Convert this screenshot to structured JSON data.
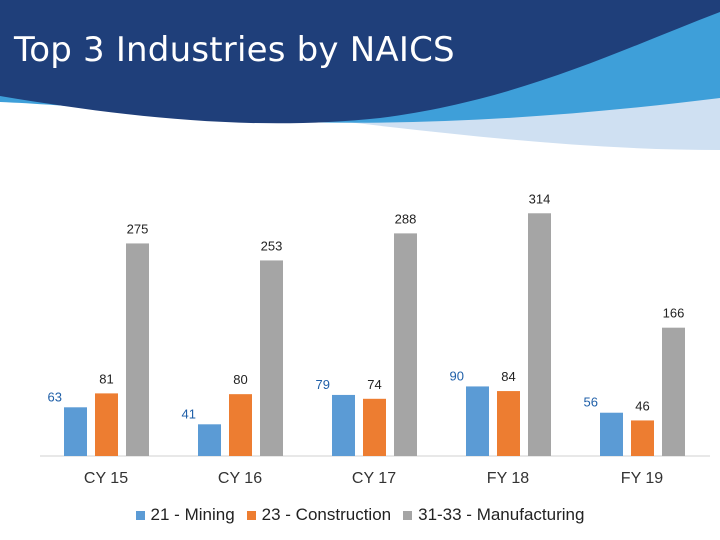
{
  "slide": {
    "title": "Top 3 Industries by NAICS"
  },
  "colors": {
    "banner_dark": "#1f3f7a",
    "banner_light": "#3e9fd9",
    "banner_pale": "#cfe0f2"
  },
  "chart_data": {
    "type": "bar",
    "title": "",
    "xlabel": "",
    "ylabel": "",
    "ylim": [
      0,
      330
    ],
    "grid": false,
    "legend_position": "bottom",
    "categories": [
      "CY 15",
      "CY 16",
      "CY 17",
      "FY 18",
      "FY 19"
    ],
    "series": [
      {
        "name": "21 - Mining",
        "color": "#5b9bd5",
        "label_color": "#1f5fa8",
        "values": [
          63,
          41,
          79,
          90,
          56
        ]
      },
      {
        "name": "23 - Construction",
        "color": "#ed7d31",
        "label_color": "#222222",
        "values": [
          81,
          80,
          74,
          84,
          46
        ]
      },
      {
        "name": "31-33 - Manufacturing",
        "color": "#a5a5a5",
        "label_color": "#222222",
        "values": [
          275,
          253,
          288,
          314,
          166
        ]
      }
    ]
  }
}
